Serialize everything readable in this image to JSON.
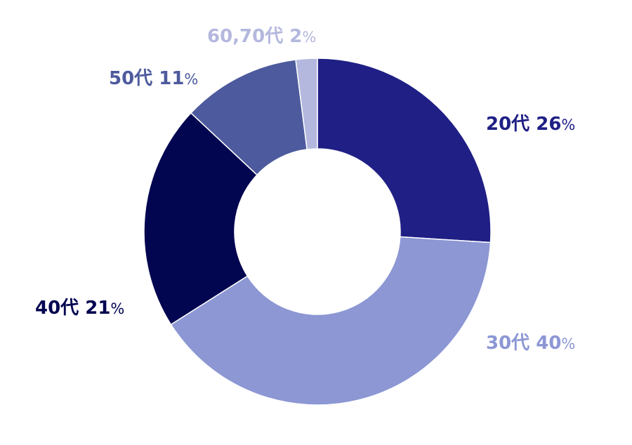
{
  "chart_data": {
    "type": "pie",
    "variant": "donut",
    "title": "",
    "slices": [
      {
        "category": "20代",
        "value": 26,
        "percent_text": "26",
        "color": "#1f1f85"
      },
      {
        "category": "30代",
        "value": 40,
        "percent_text": "40",
        "color": "#8c97d4"
      },
      {
        "category": "40代",
        "value": 21,
        "percent_text": "21",
        "color": "#020550"
      },
      {
        "category": "50代",
        "value": 11,
        "percent_text": "11",
        "color": "#4d5a9d"
      },
      {
        "category": "60,70代",
        "value": 2,
        "percent_text": "2",
        "color": "#b4b8de"
      }
    ],
    "percent_sign": "%",
    "legend": "none",
    "labels_position": "outside"
  }
}
